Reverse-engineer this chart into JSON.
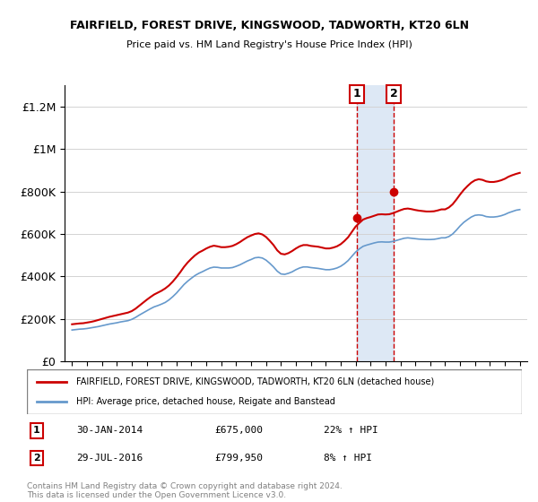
{
  "title": "FAIRFIELD, FOREST DRIVE, KINGSWOOD, TADWORTH, KT20 6LN",
  "subtitle": "Price paid vs. HM Land Registry's House Price Index (HPI)",
  "ylabel": "",
  "ylim": [
    0,
    1300000
  ],
  "yticks": [
    0,
    200000,
    400000,
    600000,
    800000,
    1000000,
    1200000
  ],
  "ytick_labels": [
    "£0",
    "£200K",
    "£400K",
    "£600K",
    "£800K",
    "£1M",
    "£1.2M"
  ],
  "xlim_start": 1994.5,
  "xlim_end": 2025.5,
  "transaction1": {
    "date_label": "30-JAN-2014",
    "price": 675000,
    "pct": "22%",
    "year": 2014.08
  },
  "transaction2": {
    "date_label": "29-JUL-2016",
    "price": 799950,
    "pct": "8%",
    "year": 2016.57
  },
  "red_color": "#cc0000",
  "blue_color": "#6699cc",
  "highlight_color": "#dde8f5",
  "legend_label_red": "FAIRFIELD, FOREST DRIVE, KINGSWOOD, TADWORTH, KT20 6LN (detached house)",
  "legend_label_blue": "HPI: Average price, detached house, Reigate and Banstead",
  "footer": "Contains HM Land Registry data © Crown copyright and database right 2024.\nThis data is licensed under the Open Government Licence v3.0.",
  "hpi_years": [
    1995,
    1995.25,
    1995.5,
    1995.75,
    1996,
    1996.25,
    1996.5,
    1996.75,
    1997,
    1997.25,
    1997.5,
    1997.75,
    1998,
    1998.25,
    1998.5,
    1998.75,
    1999,
    1999.25,
    1999.5,
    1999.75,
    2000,
    2000.25,
    2000.5,
    2000.75,
    2001,
    2001.25,
    2001.5,
    2001.75,
    2002,
    2002.25,
    2002.5,
    2002.75,
    2003,
    2003.25,
    2003.5,
    2003.75,
    2004,
    2004.25,
    2004.5,
    2004.75,
    2005,
    2005.25,
    2005.5,
    2005.75,
    2006,
    2006.25,
    2006.5,
    2006.75,
    2007,
    2007.25,
    2007.5,
    2007.75,
    2008,
    2008.25,
    2008.5,
    2008.75,
    2009,
    2009.25,
    2009.5,
    2009.75,
    2010,
    2010.25,
    2010.5,
    2010.75,
    2011,
    2011.25,
    2011.5,
    2011.75,
    2012,
    2012.25,
    2012.5,
    2012.75,
    2013,
    2013.25,
    2013.5,
    2013.75,
    2014,
    2014.25,
    2014.5,
    2014.75,
    2015,
    2015.25,
    2015.5,
    2015.75,
    2016,
    2016.25,
    2016.5,
    2016.75,
    2017,
    2017.25,
    2017.5,
    2017.75,
    2018,
    2018.25,
    2018.5,
    2018.75,
    2019,
    2019.25,
    2019.5,
    2019.75,
    2020,
    2020.25,
    2020.5,
    2020.75,
    2021,
    2021.25,
    2021.5,
    2021.75,
    2022,
    2022.25,
    2022.5,
    2022.75,
    2023,
    2023.25,
    2023.5,
    2023.75,
    2024,
    2024.25,
    2024.5,
    2024.75,
    2025
  ],
  "hpi_values": [
    148000,
    150000,
    152000,
    153000,
    155000,
    158000,
    161000,
    164000,
    168000,
    172000,
    176000,
    179000,
    182000,
    186000,
    189000,
    192000,
    198000,
    207000,
    218000,
    228000,
    238000,
    248000,
    257000,
    263000,
    270000,
    278000,
    290000,
    305000,
    322000,
    342000,
    362000,
    378000,
    392000,
    405000,
    415000,
    423000,
    432000,
    440000,
    444000,
    443000,
    440000,
    440000,
    440000,
    442000,
    448000,
    455000,
    464000,
    473000,
    480000,
    488000,
    490000,
    487000,
    477000,
    462000,
    445000,
    425000,
    412000,
    410000,
    415000,
    422000,
    432000,
    440000,
    445000,
    445000,
    442000,
    440000,
    438000,
    435000,
    432000,
    432000,
    435000,
    440000,
    448000,
    460000,
    475000,
    495000,
    515000,
    530000,
    542000,
    548000,
    553000,
    558000,
    562000,
    563000,
    562000,
    562000,
    565000,
    570000,
    575000,
    580000,
    582000,
    580000,
    578000,
    576000,
    575000,
    574000,
    574000,
    575000,
    578000,
    582000,
    582000,
    588000,
    600000,
    618000,
    638000,
    655000,
    668000,
    680000,
    688000,
    690000,
    688000,
    682000,
    680000,
    680000,
    682000,
    686000,
    692000,
    700000,
    706000,
    712000,
    715000
  ],
  "red_years": [
    1995,
    1995.25,
    1995.5,
    1995.75,
    1996,
    1996.25,
    1996.5,
    1996.75,
    1997,
    1997.25,
    1997.5,
    1997.75,
    1998,
    1998.25,
    1998.5,
    1998.75,
    1999,
    1999.25,
    1999.5,
    1999.75,
    2000,
    2000.25,
    2000.5,
    2000.75,
    2001,
    2001.25,
    2001.5,
    2001.75,
    2002,
    2002.25,
    2002.5,
    2002.75,
    2003,
    2003.25,
    2003.5,
    2003.75,
    2004,
    2004.25,
    2004.5,
    2004.75,
    2005,
    2005.25,
    2005.5,
    2005.75,
    2006,
    2006.25,
    2006.5,
    2006.75,
    2007,
    2007.25,
    2007.5,
    2007.75,
    2008,
    2008.25,
    2008.5,
    2008.75,
    2009,
    2009.25,
    2009.5,
    2009.75,
    2010,
    2010.25,
    2010.5,
    2010.75,
    2011,
    2011.25,
    2011.5,
    2011.75,
    2012,
    2012.25,
    2012.5,
    2012.75,
    2013,
    2013.25,
    2013.5,
    2013.75,
    2014,
    2014.25,
    2014.5,
    2014.75,
    2015,
    2015.25,
    2015.5,
    2015.75,
    2016,
    2016.25,
    2016.5,
    2016.75,
    2017,
    2017.25,
    2017.5,
    2017.75,
    2018,
    2018.25,
    2018.5,
    2018.75,
    2019,
    2019.25,
    2019.5,
    2019.75,
    2020,
    2020.25,
    2020.5,
    2020.75,
    2021,
    2021.25,
    2021.5,
    2021.75,
    2022,
    2022.25,
    2022.5,
    2022.75,
    2023,
    2023.25,
    2023.5,
    2023.75,
    2024,
    2024.25,
    2024.5,
    2024.75,
    2025
  ],
  "red_values": [
    175000,
    177000,
    179000,
    180000,
    183000,
    186000,
    190000,
    195000,
    200000,
    205000,
    210000,
    214000,
    218000,
    222000,
    226000,
    230000,
    237000,
    248000,
    262000,
    276000,
    290000,
    303000,
    315000,
    324000,
    333000,
    344000,
    358000,
    376000,
    397000,
    420000,
    445000,
    466000,
    484000,
    500000,
    513000,
    522000,
    532000,
    540000,
    545000,
    542000,
    538000,
    538000,
    540000,
    544000,
    552000,
    562000,
    574000,
    585000,
    593000,
    600000,
    603000,
    598000,
    586000,
    568000,
    548000,
    523000,
    507000,
    504000,
    510000,
    520000,
    532000,
    542000,
    548000,
    548000,
    544000,
    542000,
    540000,
    536000,
    532000,
    532000,
    536000,
    542000,
    552000,
    567000,
    585000,
    610000,
    635000,
    652000,
    668000,
    675000,
    680000,
    686000,
    692000,
    693000,
    692000,
    693000,
    698000,
    705000,
    712000,
    718000,
    720000,
    717000,
    713000,
    710000,
    708000,
    706000,
    706000,
    707000,
    711000,
    716000,
    716000,
    725000,
    740000,
    762000,
    786000,
    808000,
    826000,
    842000,
    853000,
    858000,
    855000,
    848000,
    845000,
    845000,
    848000,
    853000,
    860000,
    870000,
    877000,
    883000,
    888000
  ]
}
